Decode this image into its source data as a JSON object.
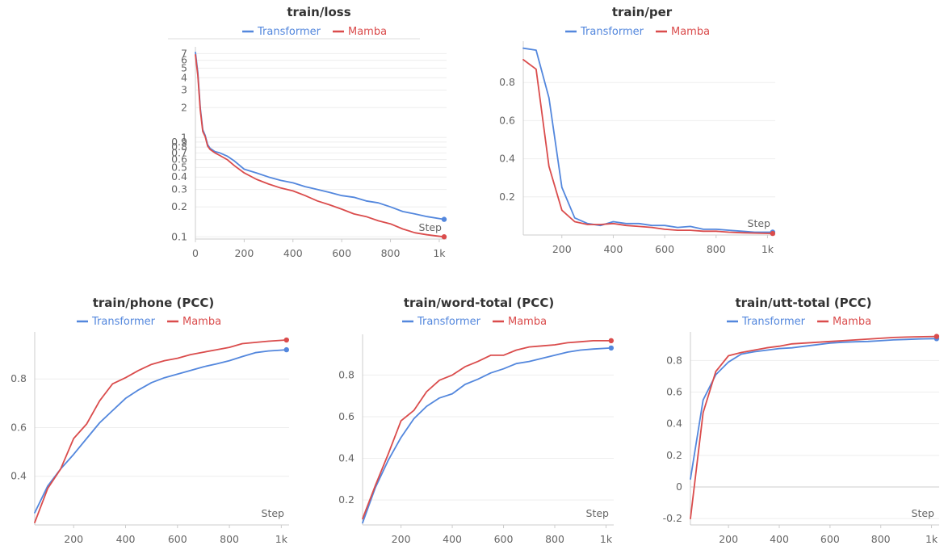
{
  "legend": {
    "transformer_label": "Transformer",
    "mamba_label": "Mamba"
  },
  "colors": {
    "transformer": "#5387dd",
    "mamba": "#da4c4c",
    "grid": "#eeeeee",
    "axis": "#cccccc",
    "tick_text": "#666666",
    "title_text": "#333333"
  },
  "step_label": "Step",
  "chart_data": [
    {
      "id": "loss",
      "type": "line",
      "title": "train/loss",
      "xlabel": "Step",
      "ylabel": "",
      "y_scale": "log",
      "xlim": [
        0,
        1030
      ],
      "ylim": [
        0.095,
        7.6
      ],
      "xticks": [
        0,
        200,
        400,
        600,
        800,
        1000
      ],
      "xtick_labels": [
        "0",
        "200",
        "400",
        "600",
        "800",
        "1k"
      ],
      "yticks": [
        0.1,
        0.2,
        0.3,
        0.4,
        0.5,
        0.6,
        0.7,
        0.8,
        0.9,
        1,
        2,
        3,
        4,
        5,
        6,
        7
      ],
      "ytick_labels": [
        "0.1",
        "0.2",
        "0.3",
        "0.4",
        "0.5",
        "0.6",
        "0.7",
        "0.8",
        "0.9",
        "1",
        "2",
        "3",
        "4",
        "5",
        "6",
        "7"
      ],
      "grid": true,
      "legend_position": "top",
      "series": [
        {
          "name": "Transformer",
          "x": [
            0,
            10,
            20,
            30,
            40,
            50,
            60,
            80,
            100,
            130,
            160,
            200,
            250,
            300,
            350,
            400,
            450,
            500,
            550,
            600,
            650,
            700,
            750,
            800,
            850,
            900,
            950,
            1020
          ],
          "y": [
            7.2,
            4.5,
            2.0,
            1.2,
            1.05,
            0.85,
            0.78,
            0.72,
            0.7,
            0.65,
            0.58,
            0.48,
            0.44,
            0.4,
            0.37,
            0.35,
            0.32,
            0.3,
            0.28,
            0.26,
            0.25,
            0.23,
            0.22,
            0.2,
            0.18,
            0.17,
            0.16,
            0.15
          ]
        },
        {
          "name": "Mamba",
          "x": [
            0,
            10,
            20,
            30,
            40,
            50,
            60,
            80,
            100,
            130,
            160,
            200,
            250,
            300,
            350,
            400,
            450,
            500,
            550,
            600,
            650,
            700,
            750,
            800,
            850,
            900,
            950,
            1020
          ],
          "y": [
            6.8,
            4.2,
            1.9,
            1.15,
            1.02,
            0.82,
            0.76,
            0.7,
            0.66,
            0.6,
            0.52,
            0.44,
            0.38,
            0.34,
            0.31,
            0.29,
            0.26,
            0.23,
            0.21,
            0.19,
            0.17,
            0.16,
            0.145,
            0.135,
            0.12,
            0.11,
            0.105,
            0.1
          ]
        }
      ]
    },
    {
      "id": "per",
      "type": "line",
      "title": "train/per",
      "xlabel": "Step",
      "ylabel": "",
      "xlim": [
        50,
        1030
      ],
      "ylim": [
        0.0,
        1.0
      ],
      "xticks": [
        200,
        400,
        600,
        800,
        1000
      ],
      "xtick_labels": [
        "200",
        "400",
        "600",
        "800",
        "1k"
      ],
      "yticks": [
        0.2,
        0.4,
        0.6,
        0.8
      ],
      "ytick_labels": [
        "0.2",
        "0.4",
        "0.6",
        "0.8"
      ],
      "grid": true,
      "legend_position": "top",
      "series": [
        {
          "name": "Transformer",
          "x": [
            50,
            100,
            150,
            200,
            250,
            300,
            350,
            400,
            450,
            500,
            550,
            600,
            650,
            700,
            750,
            800,
            850,
            900,
            950,
            1020
          ],
          "y": [
            0.98,
            0.97,
            0.72,
            0.25,
            0.09,
            0.06,
            0.05,
            0.07,
            0.06,
            0.06,
            0.05,
            0.05,
            0.04,
            0.045,
            0.03,
            0.03,
            0.025,
            0.02,
            0.015,
            0.015
          ]
        },
        {
          "name": "Mamba",
          "x": [
            50,
            100,
            150,
            200,
            250,
            300,
            350,
            400,
            450,
            500,
            550,
            600,
            650,
            700,
            750,
            800,
            850,
            900,
            950,
            1020
          ],
          "y": [
            0.92,
            0.87,
            0.36,
            0.13,
            0.07,
            0.055,
            0.055,
            0.06,
            0.05,
            0.045,
            0.04,
            0.03,
            0.025,
            0.025,
            0.02,
            0.02,
            0.015,
            0.012,
            0.01,
            0.008
          ]
        }
      ]
    },
    {
      "id": "phone",
      "type": "line",
      "title": "train/phone (PCC)",
      "xlabel": "Step",
      "ylabel": "",
      "xlim": [
        50,
        1030
      ],
      "ylim": [
        0.2,
        0.98
      ],
      "xticks": [
        200,
        400,
        600,
        800,
        1000
      ],
      "xtick_labels": [
        "200",
        "400",
        "600",
        "800",
        "1k"
      ],
      "yticks": [
        0.4,
        0.6,
        0.8
      ],
      "ytick_labels": [
        "0.4",
        "0.6",
        "0.8"
      ],
      "grid": true,
      "legend_position": "top",
      "series": [
        {
          "name": "Transformer",
          "x": [
            50,
            100,
            150,
            200,
            250,
            300,
            350,
            400,
            450,
            500,
            550,
            600,
            650,
            700,
            750,
            800,
            850,
            900,
            950,
            1020
          ],
          "y": [
            0.25,
            0.36,
            0.43,
            0.49,
            0.555,
            0.62,
            0.67,
            0.72,
            0.755,
            0.785,
            0.805,
            0.82,
            0.835,
            0.85,
            0.862,
            0.875,
            0.892,
            0.908,
            0.915,
            0.92
          ]
        },
        {
          "name": "Mamba",
          "x": [
            50,
            100,
            150,
            200,
            250,
            300,
            350,
            400,
            450,
            500,
            550,
            600,
            650,
            700,
            750,
            800,
            850,
            900,
            950,
            1020
          ],
          "y": [
            0.21,
            0.35,
            0.43,
            0.555,
            0.615,
            0.71,
            0.78,
            0.805,
            0.835,
            0.86,
            0.875,
            0.885,
            0.9,
            0.91,
            0.92,
            0.93,
            0.945,
            0.95,
            0.955,
            0.96
          ]
        }
      ]
    },
    {
      "id": "word",
      "type": "line",
      "title": "train/word-total (PCC)",
      "xlabel": "Step",
      "ylabel": "",
      "xlim": [
        50,
        1030
      ],
      "ylim": [
        0.08,
        0.98
      ],
      "xticks": [
        200,
        400,
        600,
        800,
        1000
      ],
      "xtick_labels": [
        "200",
        "400",
        "600",
        "800",
        "1k"
      ],
      "yticks": [
        0.2,
        0.4,
        0.6,
        0.8
      ],
      "ytick_labels": [
        "0.2",
        "0.4",
        "0.6",
        "0.8"
      ],
      "grid": true,
      "legend_position": "top",
      "series": [
        {
          "name": "Transformer",
          "x": [
            50,
            100,
            150,
            200,
            250,
            300,
            350,
            400,
            450,
            500,
            550,
            600,
            650,
            700,
            750,
            800,
            850,
            900,
            950,
            1020
          ],
          "y": [
            0.09,
            0.26,
            0.39,
            0.5,
            0.59,
            0.65,
            0.69,
            0.71,
            0.755,
            0.78,
            0.81,
            0.83,
            0.855,
            0.865,
            0.88,
            0.895,
            0.91,
            0.92,
            0.925,
            0.93
          ]
        },
        {
          "name": "Mamba",
          "x": [
            50,
            100,
            150,
            200,
            250,
            300,
            350,
            400,
            450,
            500,
            550,
            600,
            650,
            700,
            750,
            800,
            850,
            900,
            950,
            1020
          ],
          "y": [
            0.11,
            0.27,
            0.42,
            0.58,
            0.63,
            0.72,
            0.775,
            0.8,
            0.84,
            0.865,
            0.895,
            0.895,
            0.92,
            0.935,
            0.94,
            0.945,
            0.955,
            0.96,
            0.965,
            0.965
          ]
        }
      ]
    },
    {
      "id": "utt",
      "type": "line",
      "title": "train/utt-total (PCC)",
      "xlabel": "Step",
      "ylabel": "",
      "xlim": [
        50,
        1030
      ],
      "ylim": [
        -0.24,
        0.96
      ],
      "xticks": [
        200,
        400,
        600,
        800,
        1000
      ],
      "xtick_labels": [
        "200",
        "400",
        "600",
        "800",
        "1k"
      ],
      "yticks": [
        -0.2,
        0,
        0.2,
        0.4,
        0.6,
        0.8
      ],
      "ytick_labels": [
        "-0.2",
        "0",
        "0.2",
        "0.4",
        "0.6",
        "0.8"
      ],
      "grid": true,
      "legend_position": "top",
      "series": [
        {
          "name": "Transformer",
          "x": [
            50,
            100,
            150,
            200,
            250,
            300,
            350,
            400,
            450,
            500,
            550,
            600,
            650,
            700,
            750,
            800,
            850,
            900,
            950,
            1020
          ],
          "y": [
            0.05,
            0.55,
            0.71,
            0.79,
            0.84,
            0.855,
            0.865,
            0.875,
            0.88,
            0.89,
            0.9,
            0.91,
            0.915,
            0.918,
            0.92,
            0.925,
            0.93,
            0.933,
            0.936,
            0.938
          ]
        },
        {
          "name": "Mamba",
          "x": [
            50,
            100,
            150,
            200,
            250,
            300,
            350,
            400,
            450,
            500,
            550,
            600,
            650,
            700,
            750,
            800,
            850,
            900,
            950,
            1020
          ],
          "y": [
            -0.2,
            0.47,
            0.73,
            0.83,
            0.85,
            0.865,
            0.88,
            0.89,
            0.905,
            0.91,
            0.915,
            0.92,
            0.925,
            0.93,
            0.935,
            0.94,
            0.945,
            0.948,
            0.95,
            0.952
          ]
        }
      ]
    }
  ]
}
